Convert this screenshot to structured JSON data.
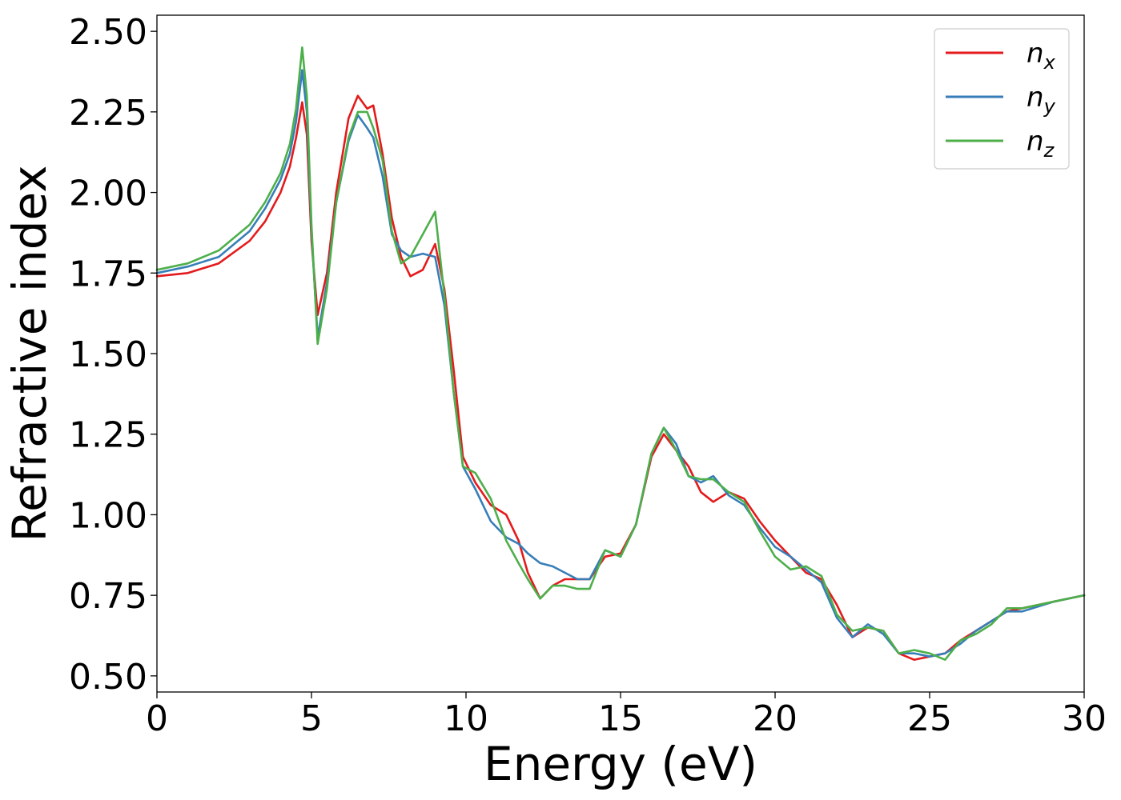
{
  "chart_data": {
    "type": "line",
    "title": "",
    "xlabel": "Energy (eV)",
    "ylabel": "Refractive index",
    "xlim": [
      0,
      30
    ],
    "ylim": [
      0.45,
      2.55
    ],
    "xticks": [
      0,
      5,
      10,
      15,
      20,
      25,
      30
    ],
    "xtick_labels": [
      "0",
      "5",
      "10",
      "15",
      "20",
      "25",
      "30"
    ],
    "yticks": [
      0.5,
      0.75,
      1.0,
      1.25,
      1.5,
      1.75,
      2.0,
      2.25,
      2.5
    ],
    "ytick_labels": [
      "0.50",
      "0.75",
      "1.00",
      "1.25",
      "1.50",
      "1.75",
      "2.00",
      "2.25",
      "2.50"
    ],
    "grid": false,
    "legend_position": "top-right",
    "series": [
      {
        "name": "n_x",
        "label_main": "n",
        "label_sub": "x",
        "color": "#e41a1c",
        "x": [
          0,
          1,
          2,
          3,
          3.5,
          4,
          4.3,
          4.5,
          4.7,
          4.85,
          5.0,
          5.2,
          5.5,
          5.8,
          6.2,
          6.5,
          6.8,
          7.0,
          7.3,
          7.6,
          7.9,
          8.2,
          8.6,
          9.0,
          9.3,
          9.6,
          9.9,
          10.3,
          10.8,
          11.3,
          11.7,
          12.0,
          12.4,
          12.8,
          13.2,
          13.6,
          14.0,
          14.5,
          15.0,
          15.5,
          16.0,
          16.4,
          16.8,
          17.2,
          17.6,
          18.0,
          18.5,
          19.0,
          19.5,
          20.0,
          20.5,
          21.0,
          21.5,
          22.0,
          22.5,
          23.0,
          23.5,
          24.0,
          24.5,
          25.0,
          25.5,
          26.0,
          26.5,
          27.0,
          27.5,
          28.0,
          29.0,
          30.0
        ],
        "y": [
          1.74,
          1.75,
          1.78,
          1.85,
          1.91,
          2.0,
          2.08,
          2.17,
          2.28,
          2.18,
          1.85,
          1.62,
          1.75,
          2.0,
          2.23,
          2.3,
          2.26,
          2.27,
          2.12,
          1.92,
          1.8,
          1.74,
          1.76,
          1.84,
          1.7,
          1.45,
          1.18,
          1.1,
          1.03,
          1.0,
          0.92,
          0.82,
          0.74,
          0.78,
          0.8,
          0.8,
          0.8,
          0.87,
          0.88,
          0.97,
          1.18,
          1.25,
          1.2,
          1.15,
          1.07,
          1.04,
          1.07,
          1.05,
          0.98,
          0.92,
          0.87,
          0.82,
          0.8,
          0.72,
          0.62,
          0.65,
          0.64,
          0.57,
          0.55,
          0.56,
          0.57,
          0.61,
          0.64,
          0.67,
          0.7,
          0.71,
          0.73,
          0.75
        ]
      },
      {
        "name": "n_y",
        "label_main": "n",
        "label_sub": "y",
        "color": "#377eb8",
        "x": [
          0,
          1,
          2,
          3,
          3.5,
          4,
          4.3,
          4.5,
          4.7,
          4.85,
          5.0,
          5.2,
          5.5,
          5.8,
          6.2,
          6.5,
          6.8,
          7.0,
          7.3,
          7.6,
          7.9,
          8.2,
          8.6,
          9.0,
          9.3,
          9.6,
          9.9,
          10.3,
          10.8,
          11.3,
          11.7,
          12.0,
          12.4,
          12.8,
          13.2,
          13.6,
          14.0,
          14.5,
          15.0,
          15.5,
          16.0,
          16.4,
          16.8,
          17.2,
          17.6,
          18.0,
          18.5,
          19.0,
          19.5,
          20.0,
          20.5,
          21.0,
          21.5,
          22.0,
          22.5,
          23.0,
          23.5,
          24.0,
          24.5,
          25.0,
          25.5,
          26.0,
          26.5,
          27.0,
          27.5,
          28.0,
          29.0,
          30.0
        ],
        "y": [
          1.75,
          1.77,
          1.8,
          1.88,
          1.95,
          2.04,
          2.12,
          2.22,
          2.38,
          2.25,
          1.88,
          1.55,
          1.72,
          1.97,
          2.16,
          2.24,
          2.2,
          2.17,
          2.05,
          1.87,
          1.82,
          1.8,
          1.81,
          1.8,
          1.65,
          1.38,
          1.15,
          1.08,
          0.98,
          0.93,
          0.91,
          0.88,
          0.85,
          0.84,
          0.82,
          0.8,
          0.8,
          0.89,
          0.87,
          0.97,
          1.19,
          1.27,
          1.22,
          1.12,
          1.1,
          1.12,
          1.06,
          1.03,
          0.96,
          0.9,
          0.87,
          0.83,
          0.79,
          0.68,
          0.62,
          0.66,
          0.63,
          0.57,
          0.57,
          0.56,
          0.57,
          0.6,
          0.64,
          0.67,
          0.7,
          0.7,
          0.73,
          0.75
        ]
      },
      {
        "name": "n_z",
        "label_main": "n",
        "label_sub": "z",
        "color": "#4daf4a",
        "x": [
          0,
          1,
          2,
          3,
          3.5,
          4,
          4.3,
          4.5,
          4.7,
          4.85,
          5.0,
          5.2,
          5.5,
          5.8,
          6.2,
          6.5,
          6.8,
          7.0,
          7.3,
          7.6,
          7.9,
          8.2,
          8.6,
          9.0,
          9.3,
          9.6,
          9.9,
          10.3,
          10.8,
          11.3,
          11.7,
          12.0,
          12.4,
          12.8,
          13.2,
          13.6,
          14.0,
          14.5,
          15.0,
          15.5,
          16.0,
          16.4,
          16.8,
          17.2,
          17.6,
          18.0,
          18.5,
          19.0,
          19.5,
          20.0,
          20.5,
          21.0,
          21.5,
          22.0,
          22.5,
          23.0,
          23.5,
          24.0,
          24.5,
          25.0,
          25.5,
          26.0,
          26.5,
          27.0,
          27.5,
          28.0,
          29.0,
          30.0
        ],
        "y": [
          1.76,
          1.78,
          1.82,
          1.9,
          1.97,
          2.06,
          2.15,
          2.26,
          2.45,
          2.3,
          1.9,
          1.53,
          1.7,
          1.97,
          2.17,
          2.25,
          2.25,
          2.2,
          2.1,
          1.88,
          1.78,
          1.8,
          1.87,
          1.94,
          1.68,
          1.38,
          1.15,
          1.13,
          1.05,
          0.92,
          0.85,
          0.8,
          0.74,
          0.78,
          0.78,
          0.77,
          0.77,
          0.89,
          0.87,
          0.97,
          1.19,
          1.27,
          1.2,
          1.12,
          1.11,
          1.11,
          1.07,
          1.04,
          0.95,
          0.87,
          0.83,
          0.84,
          0.81,
          0.69,
          0.64,
          0.65,
          0.64,
          0.57,
          0.58,
          0.57,
          0.55,
          0.61,
          0.63,
          0.66,
          0.71,
          0.71,
          0.73,
          0.75
        ]
      }
    ]
  }
}
